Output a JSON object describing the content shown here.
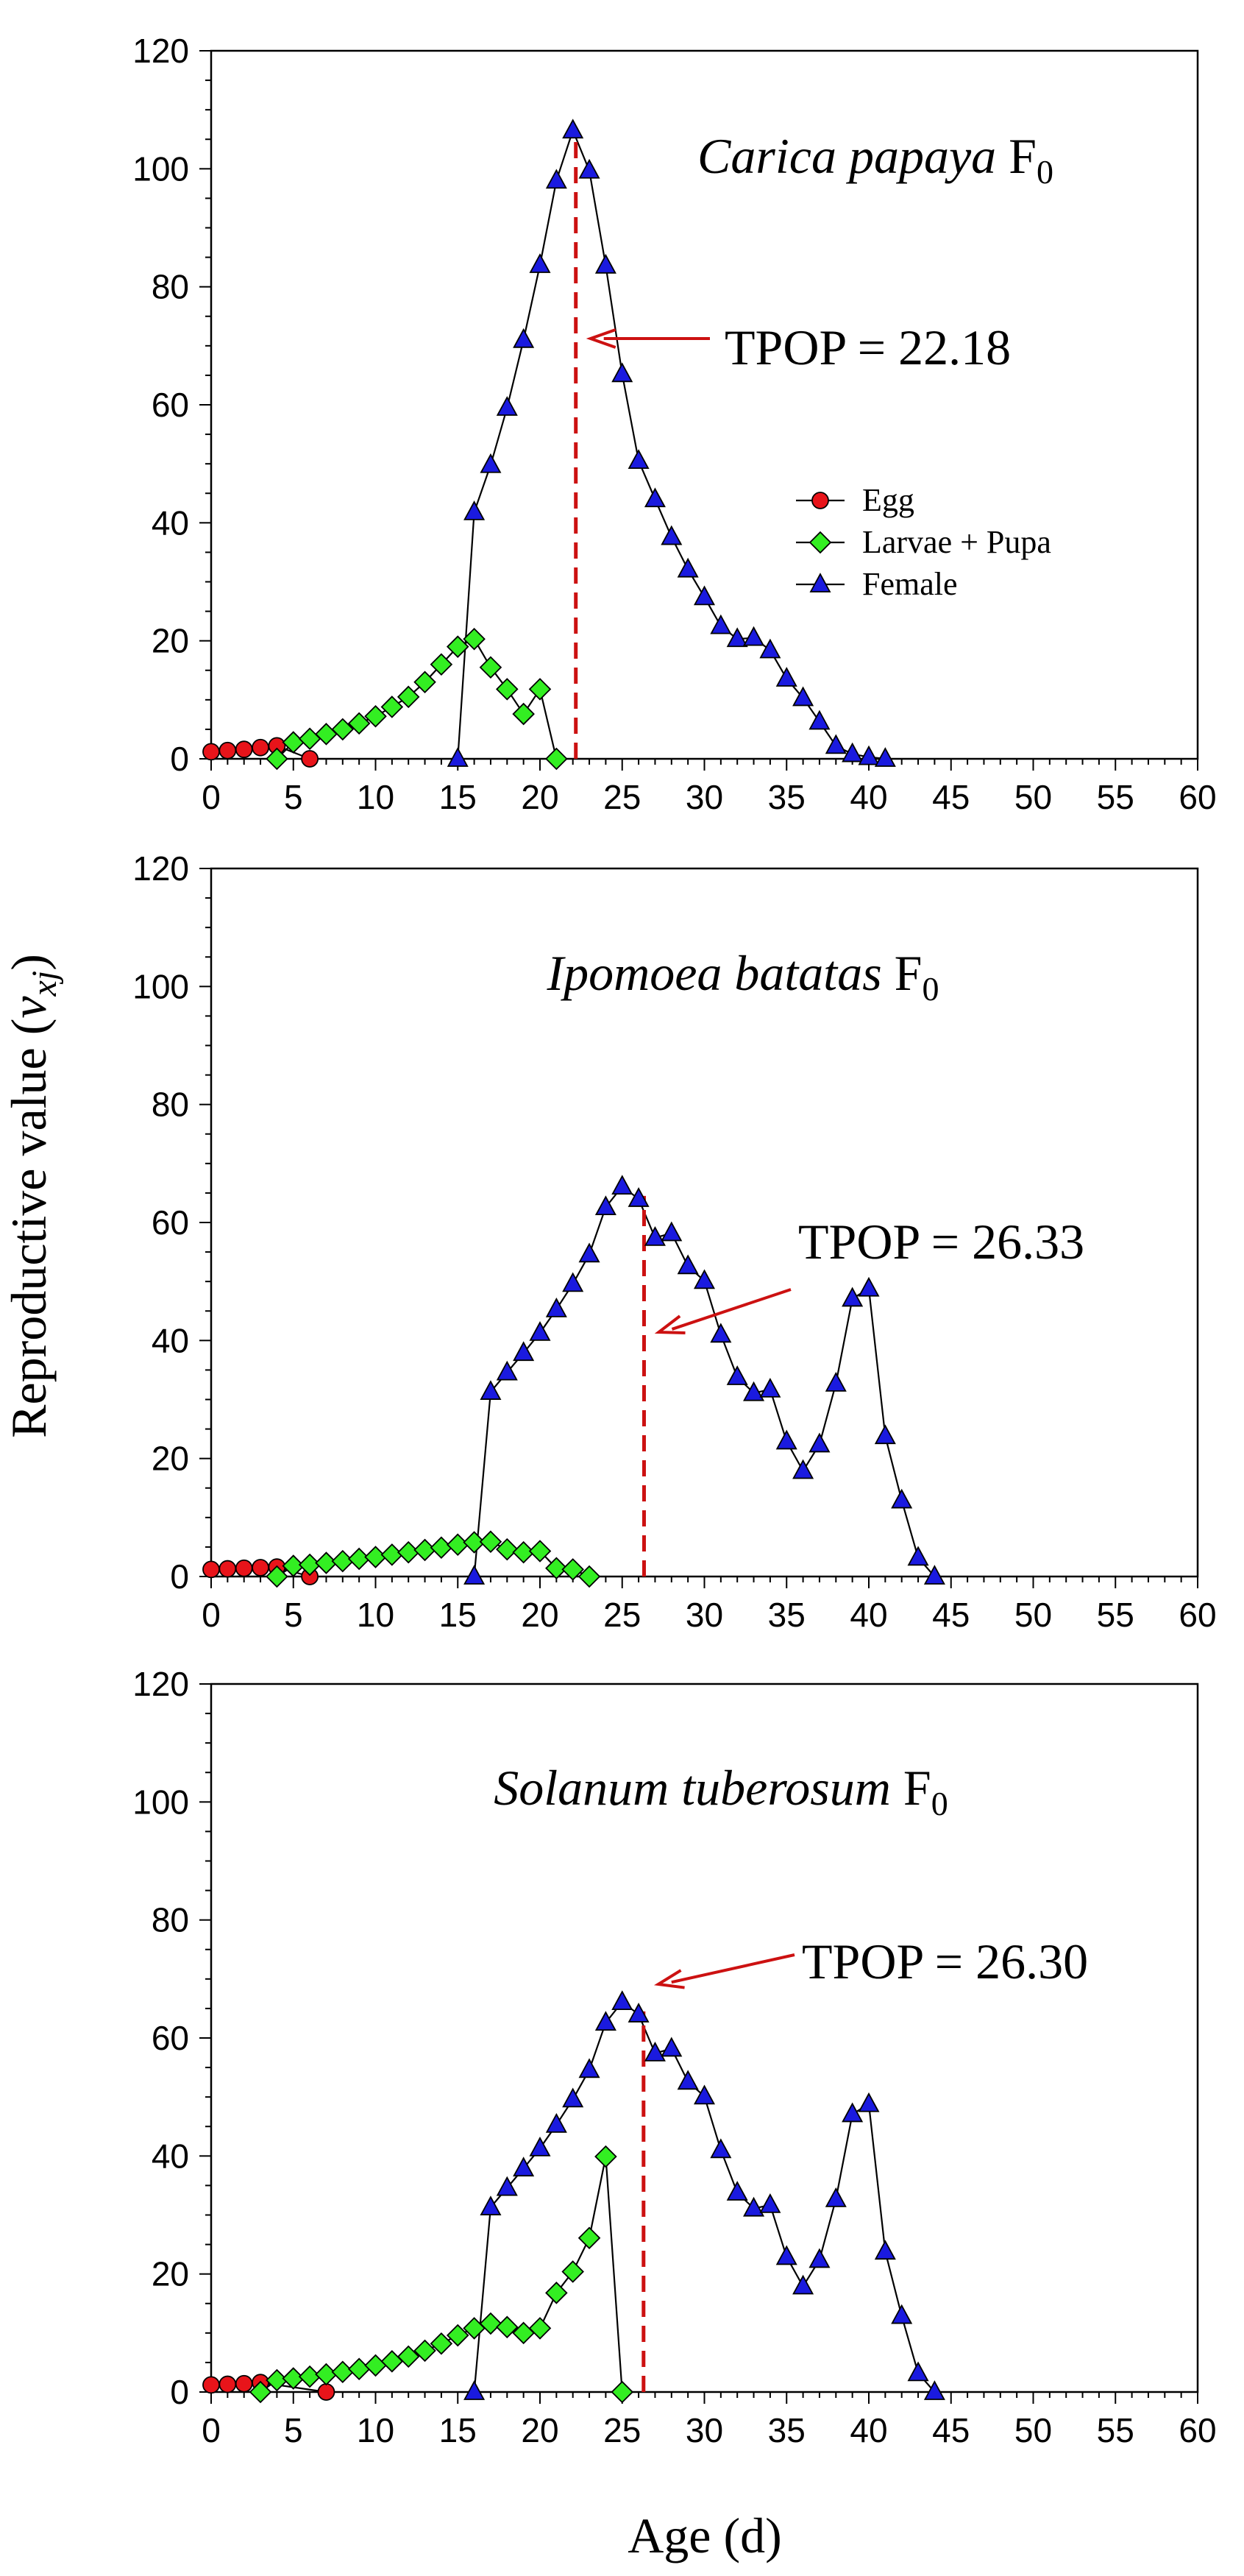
{
  "figure": {
    "ylabel_main": "Reproductive value (",
    "ylabel_var": "v",
    "ylabel_sub": "xj",
    "ylabel_close": ")",
    "xlabel": "Age (d)"
  },
  "legend": {
    "entries": [
      {
        "label": "Egg",
        "series": "egg"
      },
      {
        "label": "Larvae + Pupa",
        "series": "larvae"
      },
      {
        "label": "Female",
        "series": "female"
      }
    ]
  },
  "colors": {
    "egg": "#e8141a",
    "larvae": "#33ee22",
    "female": "#1a1adf",
    "tpop": "#cc1111",
    "line": "#000000"
  },
  "chart_data": [
    {
      "type": "line",
      "title_species": "Carica papaya",
      "title_suffix": "F",
      "title_sub": "0",
      "xlim": [
        0,
        60
      ],
      "ylim": [
        0,
        120
      ],
      "xticks": [
        "0",
        "5",
        "10",
        "15",
        "20",
        "25",
        "30",
        "35",
        "40",
        "45",
        "50",
        "55",
        "60"
      ],
      "yticks": [
        "0",
        "20",
        "40",
        "60",
        "80",
        "100",
        "120"
      ],
      "tpop_label": "TPOP = 22.18",
      "tpop_value": 22.18,
      "series": [
        {
          "name": "Egg",
          "key": "egg",
          "points": [
            [
              0,
              1.2
            ],
            [
              1,
              1.4
            ],
            [
              2,
              1.6
            ],
            [
              3,
              1.9
            ],
            [
              4,
              2.2
            ],
            [
              6,
              0
            ]
          ]
        },
        {
          "name": "Larvae + Pupa",
          "key": "larvae",
          "points": [
            [
              4,
              0
            ],
            [
              5,
              2.8
            ],
            [
              6,
              3.4
            ],
            [
              7,
              4.2
            ],
            [
              8,
              5.0
            ],
            [
              9,
              6.0
            ],
            [
              10,
              7.2
            ],
            [
              11,
              8.8
            ],
            [
              12,
              10.5
            ],
            [
              13,
              13.0
            ],
            [
              14,
              16.0
            ],
            [
              15,
              19.0
            ],
            [
              16,
              20.3
            ],
            [
              17,
              15.5
            ],
            [
              18,
              11.8
            ],
            [
              19,
              7.6
            ],
            [
              20,
              11.8
            ],
            [
              21,
              0
            ]
          ]
        },
        {
          "name": "Female",
          "key": "female",
          "points": [
            [
              15,
              0
            ],
            [
              16,
              41.8
            ],
            [
              17,
              49.8
            ],
            [
              18,
              59.5
            ],
            [
              19,
              71.0
            ],
            [
              20,
              83.7
            ],
            [
              21,
              98.0
            ],
            [
              22,
              106.5
            ],
            [
              23,
              99.7
            ],
            [
              24,
              83.6
            ],
            [
              25,
              65.2
            ],
            [
              26,
              50.5
            ],
            [
              27,
              44.0
            ],
            [
              28,
              37.6
            ],
            [
              29,
              32.1
            ],
            [
              30,
              27.4
            ],
            [
              31,
              22.5
            ],
            [
              32,
              20.3
            ],
            [
              33,
              20.5
            ],
            [
              34,
              18.4
            ],
            [
              35,
              13.6
            ],
            [
              36,
              10.3
            ],
            [
              37,
              6.3
            ],
            [
              38,
              2.2
            ],
            [
              39,
              0.8
            ],
            [
              40,
              0.3
            ],
            [
              41,
              0
            ]
          ]
        }
      ]
    },
    {
      "type": "line",
      "title_species": "Ipomoea batatas",
      "title_suffix": "F",
      "title_sub": "0",
      "xlim": [
        0,
        60
      ],
      "ylim": [
        0,
        120
      ],
      "xticks": [
        "0",
        "5",
        "10",
        "15",
        "20",
        "25",
        "30",
        "35",
        "40",
        "45",
        "50",
        "55",
        "60"
      ],
      "yticks": [
        "0",
        "20",
        "40",
        "60",
        "80",
        "100",
        "120"
      ],
      "tpop_label": "TPOP = 26.33",
      "tpop_value": 26.33,
      "series": [
        {
          "name": "Egg",
          "key": "egg",
          "points": [
            [
              0,
              1.2
            ],
            [
              1,
              1.3
            ],
            [
              2,
              1.4
            ],
            [
              3,
              1.5
            ],
            [
              4,
              1.6
            ],
            [
              6,
              0
            ]
          ]
        },
        {
          "name": "Larvae + Pupa",
          "key": "larvae",
          "points": [
            [
              4,
              0
            ],
            [
              5,
              1.8
            ],
            [
              6,
              2.0
            ],
            [
              7,
              2.3
            ],
            [
              8,
              2.6
            ],
            [
              9,
              3.0
            ],
            [
              10,
              3.3
            ],
            [
              11,
              3.7
            ],
            [
              12,
              4.1
            ],
            [
              13,
              4.5
            ],
            [
              14,
              4.9
            ],
            [
              15,
              5.4
            ],
            [
              16,
              5.8
            ],
            [
              17,
              5.9
            ],
            [
              18,
              4.6
            ],
            [
              19,
              4.1
            ],
            [
              20,
              4.3
            ],
            [
              21,
              1.4
            ],
            [
              22,
              1.2
            ],
            [
              23,
              0
            ]
          ]
        },
        {
          "name": "Female",
          "key": "female",
          "points": [
            [
              16,
              0
            ],
            [
              17,
              31.3
            ],
            [
              18,
              34.6
            ],
            [
              19,
              37.9
            ],
            [
              20,
              41.3
            ],
            [
              21,
              45.3
            ],
            [
              22,
              49.6
            ],
            [
              23,
              54.6
            ],
            [
              24,
              62.6
            ],
            [
              25,
              66.1
            ],
            [
              26,
              64.0
            ],
            [
              27,
              57.4
            ],
            [
              28,
              58.2
            ],
            [
              29,
              52.6
            ],
            [
              30,
              50.1
            ],
            [
              31,
              41.0
            ],
            [
              32,
              33.8
            ],
            [
              33,
              31.1
            ],
            [
              34,
              31.7
            ],
            [
              35,
              22.9
            ],
            [
              36,
              17.9
            ],
            [
              37,
              22.4
            ],
            [
              38,
              32.7
            ],
            [
              39,
              47.1
            ],
            [
              40,
              48.8
            ],
            [
              41,
              23.8
            ],
            [
              42,
              12.9
            ],
            [
              43,
              3.2
            ],
            [
              44,
              0
            ]
          ]
        }
      ]
    },
    {
      "type": "line",
      "title_species": "Solanum tuberosum",
      "title_suffix": "F",
      "title_sub": "0",
      "xlim": [
        0,
        60
      ],
      "ylim": [
        0,
        120
      ],
      "xticks": [
        "0",
        "5",
        "10",
        "15",
        "20",
        "25",
        "30",
        "35",
        "40",
        "45",
        "50",
        "55",
        "60"
      ],
      "yticks": [
        "0",
        "20",
        "40",
        "60",
        "80",
        "100",
        "120"
      ],
      "tpop_label": "TPOP = 26.30",
      "tpop_value": 26.3,
      "series": [
        {
          "name": "Egg",
          "key": "egg",
          "points": [
            [
              0,
              1.2
            ],
            [
              1,
              1.3
            ],
            [
              2,
              1.4
            ],
            [
              3,
              1.6
            ],
            [
              7,
              0
            ]
          ]
        },
        {
          "name": "Larvae + Pupa",
          "key": "larvae",
          "points": [
            [
              3,
              0
            ],
            [
              4,
              2.0
            ],
            [
              5,
              2.3
            ],
            [
              6,
              2.6
            ],
            [
              7,
              3.0
            ],
            [
              8,
              3.4
            ],
            [
              9,
              3.9
            ],
            [
              10,
              4.5
            ],
            [
              11,
              5.2
            ],
            [
              12,
              6.0
            ],
            [
              13,
              7.0
            ],
            [
              14,
              8.2
            ],
            [
              15,
              9.6
            ],
            [
              16,
              10.8
            ],
            [
              17,
              11.6
            ],
            [
              18,
              11.0
            ],
            [
              19,
              10.0
            ],
            [
              20,
              10.8
            ],
            [
              21,
              16.8
            ],
            [
              22,
              20.4
            ],
            [
              23,
              26.1
            ],
            [
              24,
              39.9
            ],
            [
              25,
              0
            ]
          ]
        },
        {
          "name": "Female",
          "key": "female",
          "points": [
            [
              16,
              0
            ],
            [
              17,
              31.3
            ],
            [
              18,
              34.6
            ],
            [
              19,
              37.9
            ],
            [
              20,
              41.3
            ],
            [
              21,
              45.3
            ],
            [
              22,
              49.6
            ],
            [
              23,
              54.6
            ],
            [
              24,
              62.6
            ],
            [
              25,
              66.1
            ],
            [
              26,
              64.0
            ],
            [
              27,
              57.4
            ],
            [
              28,
              58.2
            ],
            [
              29,
              52.6
            ],
            [
              30,
              50.1
            ],
            [
              31,
              41.0
            ],
            [
              32,
              33.8
            ],
            [
              33,
              31.1
            ],
            [
              34,
              31.7
            ],
            [
              35,
              22.9
            ],
            [
              36,
              17.9
            ],
            [
              37,
              22.4
            ],
            [
              38,
              32.7
            ],
            [
              39,
              47.1
            ],
            [
              40,
              48.8
            ],
            [
              41,
              23.8
            ],
            [
              42,
              12.9
            ],
            [
              43,
              3.2
            ],
            [
              44,
              0
            ]
          ]
        }
      ]
    }
  ]
}
